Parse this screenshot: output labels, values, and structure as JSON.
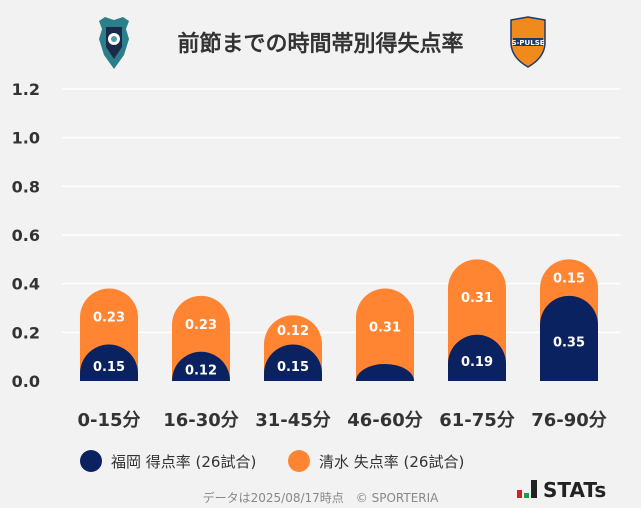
{
  "title": "前節までの時間帯別得失点率",
  "chart_data": {
    "type": "bar",
    "stacked": true,
    "categories": [
      "0-15分",
      "16-30分",
      "31-45分",
      "46-60分",
      "61-75分",
      "76-90分"
    ],
    "series": [
      {
        "name": "福岡 得点率 (26試合)",
        "color": "#0b2260",
        "values": [
          0.15,
          0.12,
          0.15,
          0.07,
          0.19,
          0.35
        ],
        "labels": [
          "0.15",
          "0.12",
          "0.15",
          "",
          "0.19",
          "0.35"
        ]
      },
      {
        "name": "清水 失点率 (26試合)",
        "color": "#ff8533",
        "values": [
          0.23,
          0.23,
          0.12,
          0.31,
          0.31,
          0.15
        ],
        "labels": [
          "0.23",
          "0.23",
          "0.12",
          "0.31",
          "0.31",
          "0.15"
        ]
      }
    ],
    "yticks": [
      "0.0",
      "0.2",
      "0.4",
      "0.6",
      "0.8",
      "1.0",
      "1.2"
    ],
    "ylim": [
      0,
      1.2
    ],
    "grid": true,
    "legend": "bottom"
  },
  "legend": [
    "福岡 得点率 (26試合)",
    "清水 失点率 (26試合)"
  ],
  "footer": "データは2025/08/17時点　© SPORTERIA",
  "brand": "STATs",
  "logos": {
    "left": "Avispa Fukuoka",
    "right": "S-PULSE"
  }
}
